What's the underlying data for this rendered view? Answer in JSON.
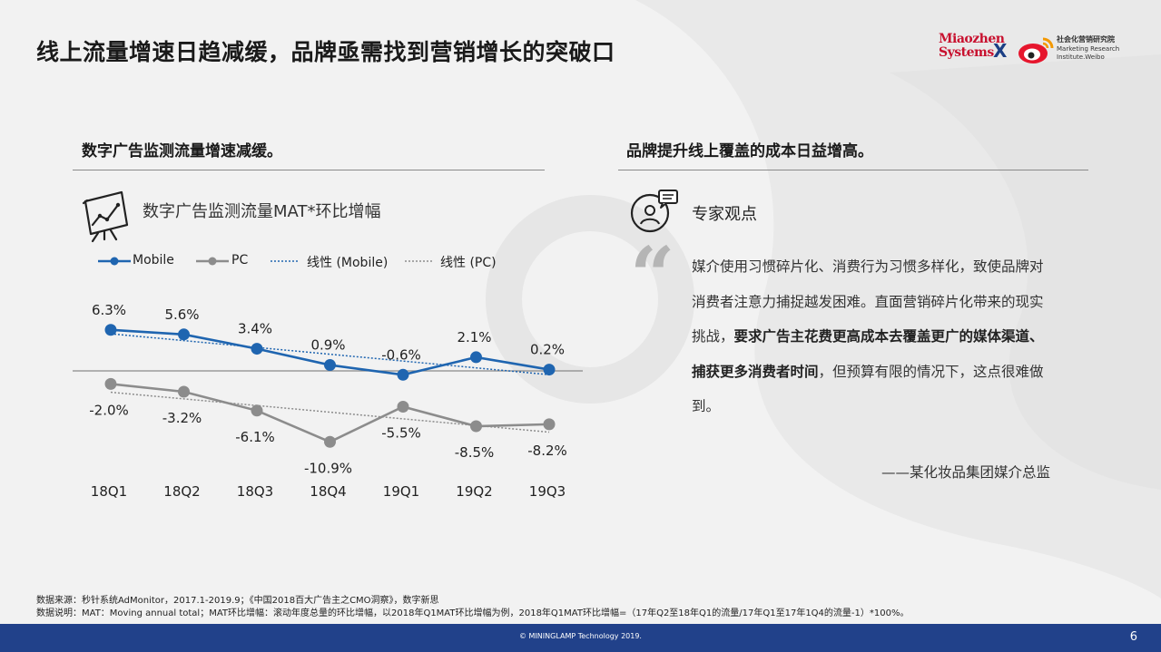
{
  "page": {
    "title": "线上流量增速日趋减缓，品牌亟需找到营销增长的突破口",
    "page_number": "6",
    "copyright": "© MININGLAMP Technology 2019."
  },
  "logos": {
    "miaozhen_line1": "Miaozhen",
    "miaozhen_line2": "Systems",
    "separator": "X",
    "inst_cn": "社会化营销研究院",
    "inst_en1": "Marketing Research",
    "inst_en2": "Institute.Weibo"
  },
  "left": {
    "section_title": "数字广告监测流量增速减缓。",
    "chart_subtitle": "数字广告监测流量MAT*环比增幅"
  },
  "right": {
    "section_title": "品牌提升线上覆盖的成本日益增高。",
    "expert_label": "专家观点",
    "quote_mark": "“",
    "quote_part1": "媒介使用习惯碎片化、消费行为习惯多样化，致使品牌对消费者注意力捕捉越发困难。直面营销碎片化带来的现实挑战，",
    "quote_bold": "要求广告主花费更高成本去覆盖更广的媒体渠道、捕获更多消费者时间",
    "quote_part2": "，但预算有限的情况下，这点很难做到。",
    "author": "——某化妆品集团媒介总监"
  },
  "notes": {
    "line1": "数据来源：秒针系统AdMonitor，2017.1-2019.9；《中国2018百大广告主之CMO洞察》，数字新思",
    "line2": "数据说明：MAT：Moving annual total；MAT环比增幅：滚动年度总量的环比增幅，以2018年Q1MAT环比增幅为例，2018年Q1MAT环比增幅=（17年Q2至18年Q1的流量/17年Q1至17年1Q4的流量-1）*100%。"
  },
  "colors": {
    "mobile": "#1f65b0",
    "pc": "#8c8c8c",
    "footer": "#21418a",
    "brand_red": "#c8102e"
  },
  "chart_data": {
    "type": "line",
    "title": "数字广告监测流量MAT*环比增幅",
    "categories": [
      "18Q1",
      "18Q2",
      "18Q3",
      "18Q4",
      "19Q1",
      "19Q2",
      "19Q3"
    ],
    "series": [
      {
        "name": "Mobile",
        "values": [
          6.3,
          5.6,
          3.4,
          0.9,
          -0.6,
          2.1,
          0.2
        ],
        "labels": [
          "6.3%",
          "5.6%",
          "3.4%",
          "0.9%",
          "-0.6%",
          "2.1%",
          "0.2%"
        ],
        "color": "#1f65b0"
      },
      {
        "name": "PC",
        "values": [
          -2.0,
          -3.2,
          -6.1,
          -10.9,
          -5.5,
          -8.5,
          -8.2
        ],
        "labels": [
          "-2.0%",
          "-3.2%",
          "-6.1%",
          "-10.9%",
          "-5.5%",
          "-8.5%",
          "-8.2%"
        ],
        "color": "#8c8c8c"
      }
    ],
    "trendlines": [
      {
        "name": "线性 (Mobile)",
        "of": "Mobile",
        "style": "dotted",
        "color": "#1f65b0"
      },
      {
        "name": "线性 (PC)",
        "of": "PC",
        "style": "dotted",
        "color": "#8c8c8c"
      }
    ],
    "legend": [
      "Mobile",
      "PC",
      "线性 (Mobile)",
      "线性 (PC)"
    ],
    "legend_position": "top-left",
    "zero_line": true,
    "grid": false,
    "ylim": [
      -13,
      7
    ]
  }
}
